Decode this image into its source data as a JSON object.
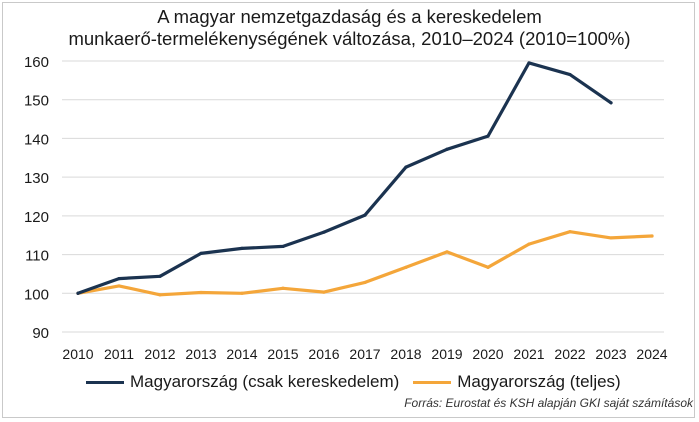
{
  "chart_data": {
    "type": "line",
    "title_lines": [
      "A magyar nemzetgazdaság és a kereskedelem",
      "munkaerő-termelékenységének változása, 2010–2024 (2010=100%)"
    ],
    "x": [
      "2010",
      "2011",
      "2012",
      "2013",
      "2014",
      "2015",
      "2016",
      "2017",
      "2018",
      "2019",
      "2020",
      "2021",
      "2022",
      "2023",
      "2024"
    ],
    "ylim": [
      90,
      160
    ],
    "yticks": [
      90,
      100,
      110,
      120,
      130,
      140,
      150,
      160
    ],
    "grid": "horizontal",
    "legend_placement": "bottom",
    "series": [
      {
        "name": "Magyarország (csak kereskedelem)",
        "color": "#1b3350",
        "values": [
          100,
          103.8,
          104.4,
          110.3,
          111.6,
          112.1,
          115.8,
          120.2,
          132.6,
          137.2,
          140.6,
          159.5,
          156.5,
          149.2,
          null
        ]
      },
      {
        "name": "Magyarország (teljes)",
        "color": "#f4a63a",
        "values": [
          100,
          101.9,
          99.6,
          100.2,
          100.0,
          101.3,
          100.3,
          102.8,
          106.7,
          110.7,
          106.7,
          112.7,
          115.9,
          114.3,
          114.8
        ]
      }
    ],
    "source": "Forrás: Eurostat és KSH alapján GKI saját számítások"
  }
}
